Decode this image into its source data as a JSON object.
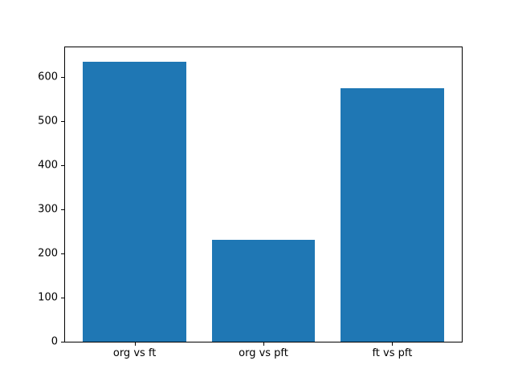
{
  "chart_data": {
    "type": "bar",
    "categories": [
      "org vs ft",
      "org vs pft",
      "ft vs pft"
    ],
    "values": [
      635,
      230,
      575
    ],
    "title": "",
    "xlabel": "",
    "ylabel": "",
    "ylim": [
      0,
      667
    ],
    "xlim": [
      -0.54,
      2.54
    ],
    "yticks": [
      0,
      100,
      200,
      300,
      400,
      500,
      600
    ],
    "bar_width": 0.8,
    "bar_color": "#1f77b4",
    "background": "#ffffff",
    "spine_color": "#000000",
    "grid": false,
    "legend": false
  }
}
